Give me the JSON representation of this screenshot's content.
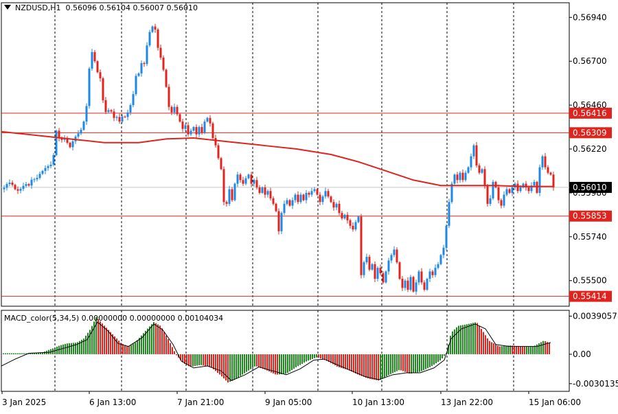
{
  "header": {
    "symbol": "NZDUSD,H1",
    "ohlc": "0.56096 0.56104 0.56007 0.56010",
    "indicator": "MACD_color(5,34,5) 0.00000000 0.00000000 0.00104034"
  },
  "chart_data": [
    {
      "type": "candlestick",
      "title": "NZDUSD,H1",
      "ylim": [
        0.5536,
        0.5702
      ],
      "y_ticks": [
        "0.56940",
        "0.56700",
        "0.56460",
        "0.56220",
        "0.55980",
        "0.55740",
        "0.55500"
      ],
      "y_tick_values": [
        0.5694,
        0.567,
        0.5646,
        0.5622,
        0.5598,
        0.5574,
        0.555
      ],
      "horizontal_levels": [
        {
          "label": "0.56416",
          "value": 0.56416,
          "color": "#e0241d"
        },
        {
          "label": "0.56309",
          "value": 0.56309,
          "color": "#e0241d"
        },
        {
          "label": "0.55853",
          "value": 0.55853,
          "color": "#e0241d"
        },
        {
          "label": "0.55414",
          "value": 0.55414,
          "color": "#e0241d"
        }
      ],
      "current_price": {
        "label": "0.56010",
        "value": 0.5601
      },
      "moving_average_color": "#e0241d",
      "bull_color": "#1e88e5",
      "bear_color": "#e0241d",
      "close_path": [
        [
          0,
          0.56
        ],
        [
          5,
          0.5601
        ],
        [
          10,
          0.5604
        ],
        [
          15,
          0.5603
        ],
        [
          20,
          0.56
        ],
        [
          25,
          0.5599
        ],
        [
          30,
          0.5601
        ],
        [
          35,
          0.5603
        ],
        [
          40,
          0.5602
        ],
        [
          45,
          0.5606
        ],
        [
          50,
          0.5605
        ],
        [
          55,
          0.5608
        ],
        [
          60,
          0.561
        ],
        [
          65,
          0.5612
        ],
        [
          70,
          0.5613
        ],
        [
          75,
          0.5614
        ],
        [
          78,
          0.5628
        ],
        [
          80,
          0.5632
        ],
        [
          82,
          0.5631
        ],
        [
          86,
          0.5625
        ],
        [
          90,
          0.5629
        ],
        [
          95,
          0.5626
        ],
        [
          100,
          0.5623
        ],
        [
          105,
          0.5627
        ],
        [
          110,
          0.563
        ],
        [
          114,
          0.5631
        ],
        [
          118,
          0.5634
        ],
        [
          122,
          0.564
        ],
        [
          126,
          0.5651
        ],
        [
          128,
          0.5666
        ],
        [
          130,
          0.5677
        ],
        [
          133,
          0.5674
        ],
        [
          136,
          0.567
        ],
        [
          139,
          0.5668
        ],
        [
          141,
          0.566
        ],
        [
          143,
          0.5664
        ],
        [
          146,
          0.5654
        ],
        [
          149,
          0.5646
        ],
        [
          153,
          0.5641
        ],
        [
          157,
          0.5644
        ],
        [
          161,
          0.5642
        ],
        [
          165,
          0.5638
        ],
        [
          169,
          0.564
        ],
        [
          173,
          0.5636
        ],
        [
          177,
          0.5641
        ],
        [
          181,
          0.5639
        ],
        [
          185,
          0.5643
        ],
        [
          189,
          0.5647
        ],
        [
          192,
          0.5652
        ],
        [
          195,
          0.5659
        ],
        [
          198,
          0.5668
        ],
        [
          201,
          0.5661
        ],
        [
          204,
          0.5669
        ],
        [
          207,
          0.5666
        ],
        [
          211,
          0.5676
        ],
        [
          214,
          0.5684
        ],
        [
          217,
          0.5687
        ],
        [
          220,
          0.5689
        ],
        [
          223,
          0.569
        ],
        [
          226,
          0.5682
        ],
        [
          229,
          0.5675
        ],
        [
          232,
          0.5672
        ],
        [
          235,
          0.5668
        ],
        [
          238,
          0.566
        ],
        [
          241,
          0.5654
        ],
        [
          244,
          0.5645
        ],
        [
          248,
          0.5642
        ],
        [
          252,
          0.5645
        ],
        [
          256,
          0.5641
        ],
        [
          260,
          0.5637
        ],
        [
          264,
          0.5633
        ],
        [
          268,
          0.5635
        ],
        [
          272,
          0.563
        ],
        [
          276,
          0.5632
        ],
        [
          280,
          0.5634
        ],
        [
          284,
          0.563
        ],
        [
          288,
          0.5634
        ],
        [
          292,
          0.5631
        ],
        [
          296,
          0.5637
        ],
        [
          300,
          0.5639
        ],
        [
          304,
          0.5636
        ],
        [
          308,
          0.5628
        ],
        [
          312,
          0.5624
        ],
        [
          316,
          0.5617
        ],
        [
          320,
          0.5611
        ],
        [
          324,
          0.5593
        ],
        [
          328,
          0.5592
        ],
        [
          332,
          0.56
        ],
        [
          336,
          0.5594
        ],
        [
          340,
          0.5603
        ],
        [
          344,
          0.5608
        ],
        [
          348,
          0.5605
        ],
        [
          352,
          0.5603
        ],
        [
          356,
          0.5606
        ],
        [
          360,
          0.5608
        ],
        [
          364,
          0.5603
        ],
        [
          368,
          0.5605
        ],
        [
          372,
          0.5601
        ],
        [
          376,
          0.5598
        ],
        [
          380,
          0.5601
        ],
        [
          384,
          0.5597
        ],
        [
          388,
          0.5599
        ],
        [
          392,
          0.5595
        ],
        [
          396,
          0.5592
        ],
        [
          400,
          0.5588
        ],
        [
          404,
          0.5577
        ],
        [
          408,
          0.5587
        ],
        [
          412,
          0.5592
        ],
        [
          416,
          0.5594
        ],
        [
          420,
          0.5591
        ],
        [
          424,
          0.5594
        ],
        [
          428,
          0.5597
        ],
        [
          432,
          0.5593
        ],
        [
          436,
          0.5597
        ],
        [
          440,
          0.5594
        ],
        [
          444,
          0.5598
        ],
        [
          448,
          0.5597
        ],
        [
          452,
          0.5599
        ],
        [
          456,
          0.56
        ],
        [
          460,
          0.5597
        ],
        [
          464,
          0.5593
        ],
        [
          468,
          0.5596
        ],
        [
          472,
          0.5599
        ],
        [
          476,
          0.5596
        ],
        [
          480,
          0.5593
        ],
        [
          484,
          0.559
        ],
        [
          488,
          0.5592
        ],
        [
          492,
          0.5587
        ],
        [
          496,
          0.5584
        ],
        [
          500,
          0.5586
        ],
        [
          504,
          0.5583
        ],
        [
          508,
          0.558
        ],
        [
          512,
          0.5578
        ],
        [
          516,
          0.5582
        ],
        [
          520,
          0.5585
        ],
        [
          524,
          0.5553
        ],
        [
          528,
          0.556
        ],
        [
          532,
          0.5563
        ],
        [
          536,
          0.5556
        ],
        [
          540,
          0.5559
        ],
        [
          544,
          0.5551
        ],
        [
          548,
          0.5557
        ],
        [
          552,
          0.5554
        ],
        [
          556,
          0.5549
        ],
        [
          560,
          0.5555
        ],
        [
          564,
          0.5561
        ],
        [
          568,
          0.5564
        ],
        [
          572,
          0.5567
        ],
        [
          576,
          0.556
        ],
        [
          580,
          0.5551
        ],
        [
          584,
          0.5546
        ],
        [
          588,
          0.555
        ],
        [
          592,
          0.5545
        ],
        [
          596,
          0.5552
        ],
        [
          600,
          0.5544
        ],
        [
          604,
          0.5549
        ],
        [
          608,
          0.5555
        ],
        [
          612,
          0.5549
        ],
        [
          616,
          0.5545
        ],
        [
          620,
          0.5551
        ],
        [
          624,
          0.5555
        ],
        [
          628,
          0.5553
        ],
        [
          632,
          0.5557
        ],
        [
          636,
          0.5559
        ],
        [
          640,
          0.5564
        ],
        [
          644,
          0.5568
        ],
        [
          648,
          0.558
        ],
        [
          652,
          0.5593
        ],
        [
          656,
          0.5603
        ],
        [
          660,
          0.5608
        ],
        [
          664,
          0.5605
        ],
        [
          668,
          0.5609
        ],
        [
          672,
          0.5605
        ],
        [
          676,
          0.5609
        ],
        [
          680,
          0.5612
        ],
        [
          684,
          0.5618
        ],
        [
          688,
          0.5624
        ],
        [
          692,
          0.5613
        ],
        [
          696,
          0.5609
        ],
        [
          700,
          0.5611
        ],
        [
          704,
          0.5602
        ],
        [
          708,
          0.5592
        ],
        [
          712,
          0.5595
        ],
        [
          716,
          0.5604
        ],
        [
          720,
          0.5601
        ],
        [
          724,
          0.5594
        ],
        [
          728,
          0.5591
        ],
        [
          732,
          0.5597
        ],
        [
          736,
          0.56
        ],
        [
          740,
          0.5598
        ],
        [
          744,
          0.5601
        ],
        [
          748,
          0.5603
        ],
        [
          752,
          0.5599
        ],
        [
          756,
          0.5601
        ],
        [
          760,
          0.5603
        ],
        [
          764,
          0.5601
        ],
        [
          768,
          0.5599
        ],
        [
          772,
          0.5602
        ],
        [
          776,
          0.5604
        ],
        [
          780,
          0.5598
        ],
        [
          784,
          0.5612
        ],
        [
          788,
          0.5618
        ],
        [
          792,
          0.5612
        ],
        [
          796,
          0.5609
        ],
        [
          800,
          0.5608
        ],
        [
          804,
          0.5601
        ]
      ],
      "moving_average": [
        [
          0,
          0.56315
        ],
        [
          50,
          0.56295
        ],
        [
          100,
          0.56275
        ],
        [
          150,
          0.56255
        ],
        [
          200,
          0.56255
        ],
        [
          240,
          0.56275
        ],
        [
          280,
          0.5628
        ],
        [
          330,
          0.5626
        ],
        [
          380,
          0.5624
        ],
        [
          430,
          0.5622
        ],
        [
          480,
          0.5619
        ],
        [
          520,
          0.5615
        ],
        [
          560,
          0.561
        ],
        [
          600,
          0.5605
        ],
        [
          640,
          0.5602
        ],
        [
          680,
          0.5602
        ],
        [
          720,
          0.5602
        ],
        [
          760,
          0.56015
        ],
        [
          805,
          0.56015
        ]
      ]
    },
    {
      "type": "bar",
      "title": "MACD_color(5,34,5)",
      "ylim": [
        -0.0038,
        0.0045
      ],
      "y_ticks": [
        "0.0039057",
        "0.00",
        "-0.0030135"
      ],
      "y_tick_values": [
        0.0039057,
        0.0,
        -0.0030135
      ],
      "positive_color": "#1b8a1b",
      "negative_color": "#e0241d",
      "signal_color": "#000000",
      "histogram": [
        [
          0,
          0.0001
        ],
        [
          40,
          0.0001
        ],
        [
          60,
          0.0002
        ],
        [
          75,
          0.0006
        ],
        [
          85,
          0.0009
        ],
        [
          95,
          0.0011
        ],
        [
          110,
          0.0012
        ],
        [
          120,
          0.0016
        ],
        [
          130,
          0.0026
        ],
        [
          138,
          0.0038
        ],
        [
          145,
          0.0033
        ],
        [
          160,
          0.0022
        ],
        [
          175,
          0.0011
        ],
        [
          185,
          0.0008
        ],
        [
          195,
          0.0012
        ],
        [
          210,
          0.0024
        ],
        [
          222,
          0.0033
        ],
        [
          232,
          0.0029
        ],
        [
          245,
          0.0013
        ],
        [
          255,
          -0.0001
        ],
        [
          265,
          -0.0009
        ],
        [
          275,
          -0.0013
        ],
        [
          290,
          -0.0011
        ],
        [
          305,
          -0.0013
        ],
        [
          320,
          -0.0022
        ],
        [
          330,
          -0.0029
        ],
        [
          340,
          -0.0026
        ],
        [
          355,
          -0.0019
        ],
        [
          370,
          -0.0012
        ],
        [
          385,
          -0.0016
        ],
        [
          400,
          -0.0021
        ],
        [
          415,
          -0.002
        ],
        [
          430,
          -0.0013
        ],
        [
          445,
          -0.0007
        ],
        [
          460,
          -0.0003
        ],
        [
          475,
          -0.0007
        ],
        [
          490,
          -0.0013
        ],
        [
          505,
          -0.0016
        ],
        [
          520,
          -0.0021
        ],
        [
          535,
          -0.0025
        ],
        [
          550,
          -0.0027
        ],
        [
          565,
          -0.0021
        ],
        [
          580,
          -0.0016
        ],
        [
          595,
          -0.002
        ],
        [
          610,
          -0.0018
        ],
        [
          625,
          -0.0013
        ],
        [
          640,
          -0.0006
        ],
        [
          648,
          0.0001
        ],
        [
          655,
          0.0022
        ],
        [
          665,
          0.0029
        ],
        [
          680,
          0.0031
        ],
        [
          692,
          0.0033
        ],
        [
          700,
          0.0025
        ],
        [
          710,
          0.0014
        ],
        [
          725,
          0.0008
        ],
        [
          740,
          0.0009
        ],
        [
          760,
          0.0008
        ],
        [
          775,
          0.0008
        ],
        [
          790,
          0.0014
        ],
        [
          800,
          0.0011
        ]
      ],
      "signal": [
        [
          0,
          -0.0012
        ],
        [
          20,
          -0.0005
        ],
        [
          40,
          0.0001
        ],
        [
          70,
          0.0002
        ],
        [
          90,
          0.0006
        ],
        [
          110,
          0.001
        ],
        [
          125,
          0.0015
        ],
        [
          140,
          0.0033
        ],
        [
          155,
          0.0024
        ],
        [
          170,
          0.0011
        ],
        [
          185,
          0.0008
        ],
        [
          205,
          0.0017
        ],
        [
          222,
          0.0031
        ],
        [
          235,
          0.0025
        ],
        [
          250,
          0.001
        ],
        [
          262,
          -0.0007
        ],
        [
          280,
          -0.0014
        ],
        [
          300,
          -0.0012
        ],
        [
          320,
          -0.0017
        ],
        [
          335,
          -0.0027
        ],
        [
          355,
          -0.0021
        ],
        [
          375,
          -0.0013
        ],
        [
          395,
          -0.0017
        ],
        [
          415,
          -0.0021
        ],
        [
          435,
          -0.0015
        ],
        [
          455,
          -0.0006
        ],
        [
          470,
          -0.0005
        ],
        [
          490,
          -0.0011
        ],
        [
          510,
          -0.0017
        ],
        [
          530,
          -0.0023
        ],
        [
          550,
          -0.0026
        ],
        [
          570,
          -0.0021
        ],
        [
          590,
          -0.0019
        ],
        [
          610,
          -0.0019
        ],
        [
          630,
          -0.0014
        ],
        [
          645,
          -0.0006
        ],
        [
          655,
          0.0016
        ],
        [
          670,
          0.0026
        ],
        [
          690,
          0.0031
        ],
        [
          705,
          0.0026
        ],
        [
          720,
          0.001
        ],
        [
          740,
          0.0008
        ],
        [
          760,
          0.0008
        ],
        [
          780,
          0.0008
        ],
        [
          800,
          0.0012
        ]
      ]
    }
  ],
  "x_axis": {
    "ticks": [
      "3 Jan 2025",
      "6 Jan 13:00",
      "7 Jan 21:00",
      "9 Jan 05:00",
      "10 Jan 13:00",
      "13 Jan 22:00",
      "15 Jan 06:00"
    ]
  }
}
